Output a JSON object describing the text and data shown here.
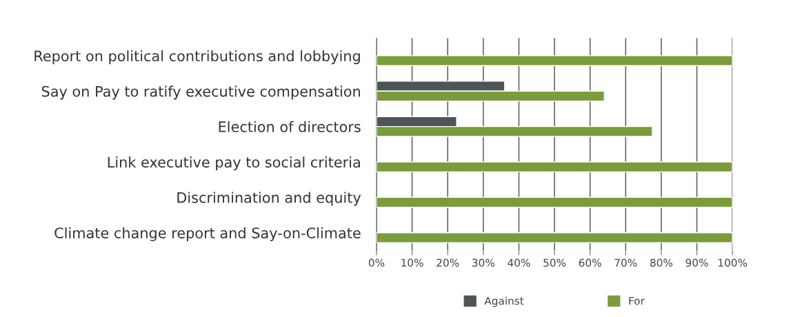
{
  "chart_data": {
    "type": "bar",
    "orientation": "horizontal",
    "categories": [
      "Report on political contributions and lobbying",
      "Say on Pay to ratify executive compensation",
      "Election of directors",
      "Link executive pay to social criteria",
      "Discrimination and equity",
      "Climate change report and Say-on-Climate"
    ],
    "series": [
      {
        "name": "Against",
        "color": "#4d5557",
        "values": [
          null,
          36,
          22.5,
          null,
          null,
          null
        ]
      },
      {
        "name": "For",
        "color": "#7a9c3b",
        "values": [
          100,
          64,
          77.5,
          100,
          100,
          100
        ]
      }
    ],
    "xlim": [
      0,
      100
    ],
    "xticks": [
      {
        "value": 0,
        "label": "0%"
      },
      {
        "value": 10,
        "label": "10%"
      },
      {
        "value": 20,
        "label": "20%"
      },
      {
        "value": 30,
        "label": "30%"
      },
      {
        "value": 40,
        "label": "40%"
      },
      {
        "value": 50,
        "label": "50%"
      },
      {
        "value": 60,
        "label": "60%"
      },
      {
        "value": 70,
        "label": "70%"
      },
      {
        "value": 80,
        "label": "80%"
      },
      {
        "value": 90,
        "label": "90%"
      },
      {
        "value": 100,
        "label": "100%"
      }
    ],
    "grid": "x",
    "legend": "bottom"
  }
}
